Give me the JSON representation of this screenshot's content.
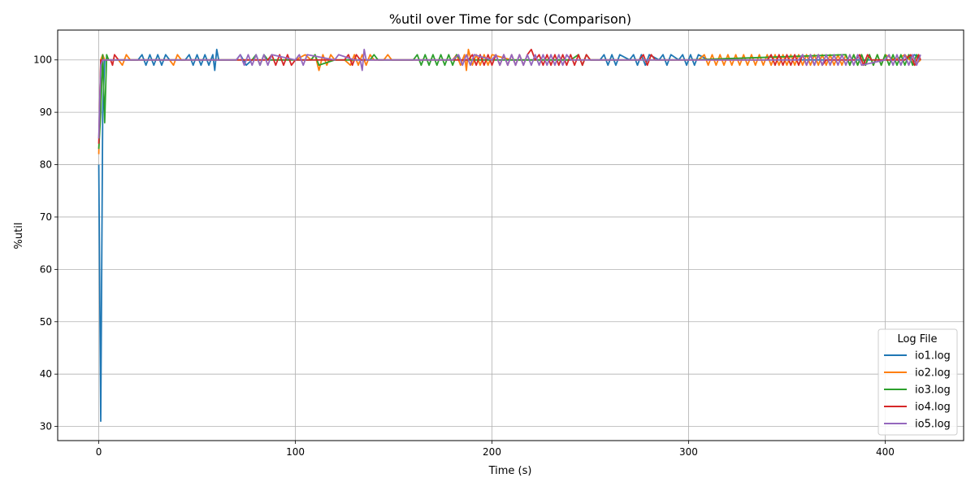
{
  "chart_data": {
    "type": "line",
    "title": "%util over Time for sdc (Comparison)",
    "xlabel": "Time (s)",
    "ylabel": "%util",
    "xlim": [
      -20.9,
      439.9
    ],
    "ylim": [
      27.3,
      105.7
    ],
    "xticks": [
      0,
      100,
      200,
      300,
      400
    ],
    "yticks": [
      30,
      40,
      50,
      60,
      70,
      80,
      90,
      100
    ],
    "grid": true,
    "legend": {
      "title": "Log File",
      "placement": "lower-right",
      "entries": [
        "io1.log",
        "io2.log",
        "io3.log",
        "io4.log",
        "io5.log"
      ]
    },
    "colors": [
      "#1f77b4",
      "#ff7f0e",
      "#2ca02c",
      "#d62728",
      "#9467bd"
    ],
    "series": [
      {
        "name": "io1.log",
        "color": "#1f77b4",
        "x": [
          0,
          1,
          2,
          3,
          6,
          8,
          12,
          14,
          16,
          20,
          22,
          24,
          26,
          28,
          30,
          32,
          34,
          36,
          44,
          46,
          48,
          50,
          52,
          54,
          56,
          58,
          59,
          60,
          61,
          70,
          72,
          75,
          78,
          80,
          95,
          100,
          150,
          180,
          200,
          220,
          240,
          255,
          257,
          259,
          261,
          263,
          265,
          270,
          272,
          274,
          276,
          278,
          280,
          285,
          287,
          289,
          291,
          295,
          297,
          299,
          301,
          303,
          305,
          310,
          320,
          330,
          340,
          350,
          360,
          370,
          380,
          390,
          400,
          410,
          415,
          418
        ],
        "y": [
          80,
          31,
          90,
          100,
          100,
          100,
          100,
          100,
          100,
          100,
          101,
          99,
          101,
          99,
          101,
          99,
          101,
          100,
          100,
          101,
          99,
          101,
          99,
          101,
          99,
          101,
          98,
          102,
          100,
          100,
          101,
          99,
          100,
          100,
          100,
          100,
          100,
          100,
          100,
          100,
          100,
          100,
          101,
          99,
          101,
          99,
          101,
          100,
          101,
          99,
          101,
          99,
          101,
          100,
          101,
          99,
          101,
          100,
          101,
          99,
          101,
          99,
          101,
          100,
          100,
          100,
          100,
          100,
          100,
          100,
          100,
          100,
          100,
          100,
          101,
          100
        ]
      },
      {
        "name": "io2.log",
        "color": "#ff7f0e",
        "x": [
          0,
          1,
          2,
          3,
          5,
          10,
          12,
          14,
          16,
          36,
          38,
          40,
          42,
          100,
          105,
          108,
          110,
          112,
          114,
          116,
          118,
          120,
          125,
          128,
          130,
          132,
          134,
          136,
          138,
          140,
          145,
          147,
          149,
          180,
          182,
          184,
          186,
          187,
          188,
          190,
          192,
          194,
          196,
          198,
          200,
          210,
          230,
          260,
          305,
          308,
          310,
          312,
          314,
          316,
          318,
          320,
          322,
          324,
          326,
          328,
          330,
          332,
          334,
          336,
          338,
          340,
          342,
          344,
          346,
          348,
          350,
          352,
          354,
          356,
          358,
          360,
          362,
          364,
          366,
          368,
          370,
          372,
          374,
          376,
          378,
          380,
          382,
          384,
          386,
          388,
          390,
          392,
          394,
          396,
          398,
          400,
          405,
          410,
          415,
          418
        ],
        "y": [
          82,
          100,
          101,
          100,
          100,
          100,
          99,
          101,
          100,
          100,
          99,
          101,
          100,
          100,
          101,
          100,
          101,
          98,
          101,
          99,
          101,
          100,
          100,
          99,
          101,
          99,
          101,
          99,
          101,
          100,
          100,
          101,
          100,
          100,
          101,
          99,
          101,
          98,
          102,
          99,
          101,
          99,
          101,
          99,
          101,
          100,
          100,
          100,
          100,
          101,
          99,
          101,
          99,
          101,
          99,
          101,
          99,
          101,
          99,
          101,
          99,
          101,
          99,
          101,
          99,
          101,
          99,
          101,
          99,
          101,
          99,
          101,
          99,
          101,
          99,
          101,
          99,
          101,
          99,
          101,
          99,
          101,
          99,
          101,
          99,
          101,
          99,
          101,
          99,
          101,
          99,
          101,
          99,
          101,
          99,
          101,
          100,
          101,
          99,
          100
        ]
      },
      {
        "name": "io3.log",
        "color": "#2ca02c",
        "x": [
          0,
          1,
          2,
          3,
          4,
          5,
          6,
          10,
          60,
          78,
          80,
          82,
          84,
          86,
          100,
          108,
          110,
          112,
          120,
          138,
          140,
          142,
          160,
          162,
          164,
          166,
          168,
          170,
          172,
          174,
          176,
          178,
          180,
          182,
          184,
          190,
          200,
          220,
          240,
          244,
          246,
          248,
          250,
          260,
          300,
          380,
          382,
          384,
          386,
          388,
          390,
          392,
          394,
          396,
          398,
          400,
          402,
          404,
          406,
          408,
          410,
          412,
          414,
          416,
          418
        ],
        "y": [
          83,
          90,
          101,
          88,
          101,
          100,
          100,
          100,
          100,
          100,
          101,
          99,
          101,
          100,
          100,
          100,
          101,
          99,
          100,
          100,
          101,
          100,
          100,
          101,
          99,
          101,
          99,
          101,
          99,
          101,
          99,
          101,
          99,
          101,
          100,
          100,
          100,
          100,
          100,
          101,
          99,
          101,
          100,
          100,
          100,
          101,
          99,
          101,
          99,
          101,
          99,
          101,
          99,
          101,
          99,
          101,
          99,
          101,
          99,
          101,
          99,
          101,
          99,
          101,
          100
        ]
      },
      {
        "name": "io4.log",
        "color": "#d62728",
        "x": [
          0,
          1,
          2,
          4,
          6,
          7,
          8,
          10,
          60,
          86,
          88,
          90,
          92,
          94,
          96,
          98,
          100,
          120,
          125,
          127,
          129,
          131,
          133,
          160,
          188,
          190,
          192,
          194,
          196,
          198,
          200,
          202,
          204,
          206,
          208,
          210,
          212,
          214,
          216,
          218,
          220,
          222,
          224,
          226,
          228,
          230,
          232,
          234,
          236,
          238,
          240,
          242,
          244,
          246,
          248,
          250,
          260,
          275,
          277,
          279,
          281,
          283,
          300,
          340,
          342,
          344,
          346,
          348,
          350,
          352,
          354,
          356,
          358,
          360,
          362,
          364,
          366,
          368,
          370,
          380,
          385,
          387,
          389,
          391,
          393,
          400,
          410,
          413,
          415,
          417,
          418
        ],
        "y": [
          84,
          100,
          100,
          100,
          100,
          99,
          101,
          100,
          100,
          100,
          101,
          99,
          101,
          99,
          101,
          99,
          100,
          100,
          100,
          101,
          99,
          101,
          100,
          100,
          100,
          101,
          99,
          101,
          99,
          101,
          99,
          101,
          99,
          101,
          99,
          101,
          99,
          101,
          99,
          101,
          102,
          100,
          101,
          99,
          101,
          99,
          101,
          99,
          101,
          99,
          101,
          99,
          101,
          99,
          101,
          100,
          100,
          100,
          101,
          99,
          101,
          100,
          100,
          100,
          101,
          99,
          101,
          99,
          101,
          99,
          101,
          99,
          101,
          99,
          101,
          99,
          101,
          99,
          100,
          100,
          100,
          101,
          99,
          101,
          100,
          100,
          100,
          101,
          99,
          101,
          100
        ]
      },
      {
        "name": "io5.log",
        "color": "#9467bd",
        "x": [
          0,
          1,
          2,
          3,
          6,
          10,
          20,
          40,
          60,
          70,
          72,
          74,
          76,
          78,
          80,
          82,
          84,
          86,
          88,
          100,
          102,
          104,
          106,
          120,
          122,
          130,
          133,
          134,
          135,
          136,
          138,
          160,
          180,
          183,
          185,
          187,
          189,
          191,
          200,
          202,
          204,
          206,
          208,
          210,
          212,
          214,
          216,
          218,
          220,
          222,
          224,
          226,
          228,
          230,
          232,
          234,
          236,
          238,
          240,
          270,
          300,
          356,
          358,
          360,
          362,
          364,
          366,
          368,
          370,
          372,
          374,
          376,
          378,
          380,
          382,
          384,
          386,
          388,
          400,
          402,
          404,
          406,
          408,
          410,
          412,
          414,
          416,
          418
        ],
        "y": [
          85,
          99,
          100,
          100,
          100,
          100,
          100,
          100,
          100,
          100,
          101,
          99,
          101,
          99,
          101,
          99,
          101,
          99,
          101,
          100,
          101,
          99,
          101,
          100,
          101,
          100,
          100,
          98,
          102,
          100,
          100,
          100,
          100,
          101,
          99,
          101,
          99,
          101,
          100,
          101,
          99,
          101,
          99,
          101,
          99,
          101,
          99,
          101,
          99,
          101,
          99,
          101,
          99,
          101,
          99,
          101,
          99,
          101,
          100,
          100,
          100,
          100,
          101,
          99,
          101,
          99,
          101,
          99,
          101,
          99,
          101,
          99,
          101,
          99,
          101,
          99,
          101,
          99,
          100,
          101,
          99,
          101,
          99,
          101,
          99,
          101,
          99,
          101
        ]
      }
    ]
  }
}
